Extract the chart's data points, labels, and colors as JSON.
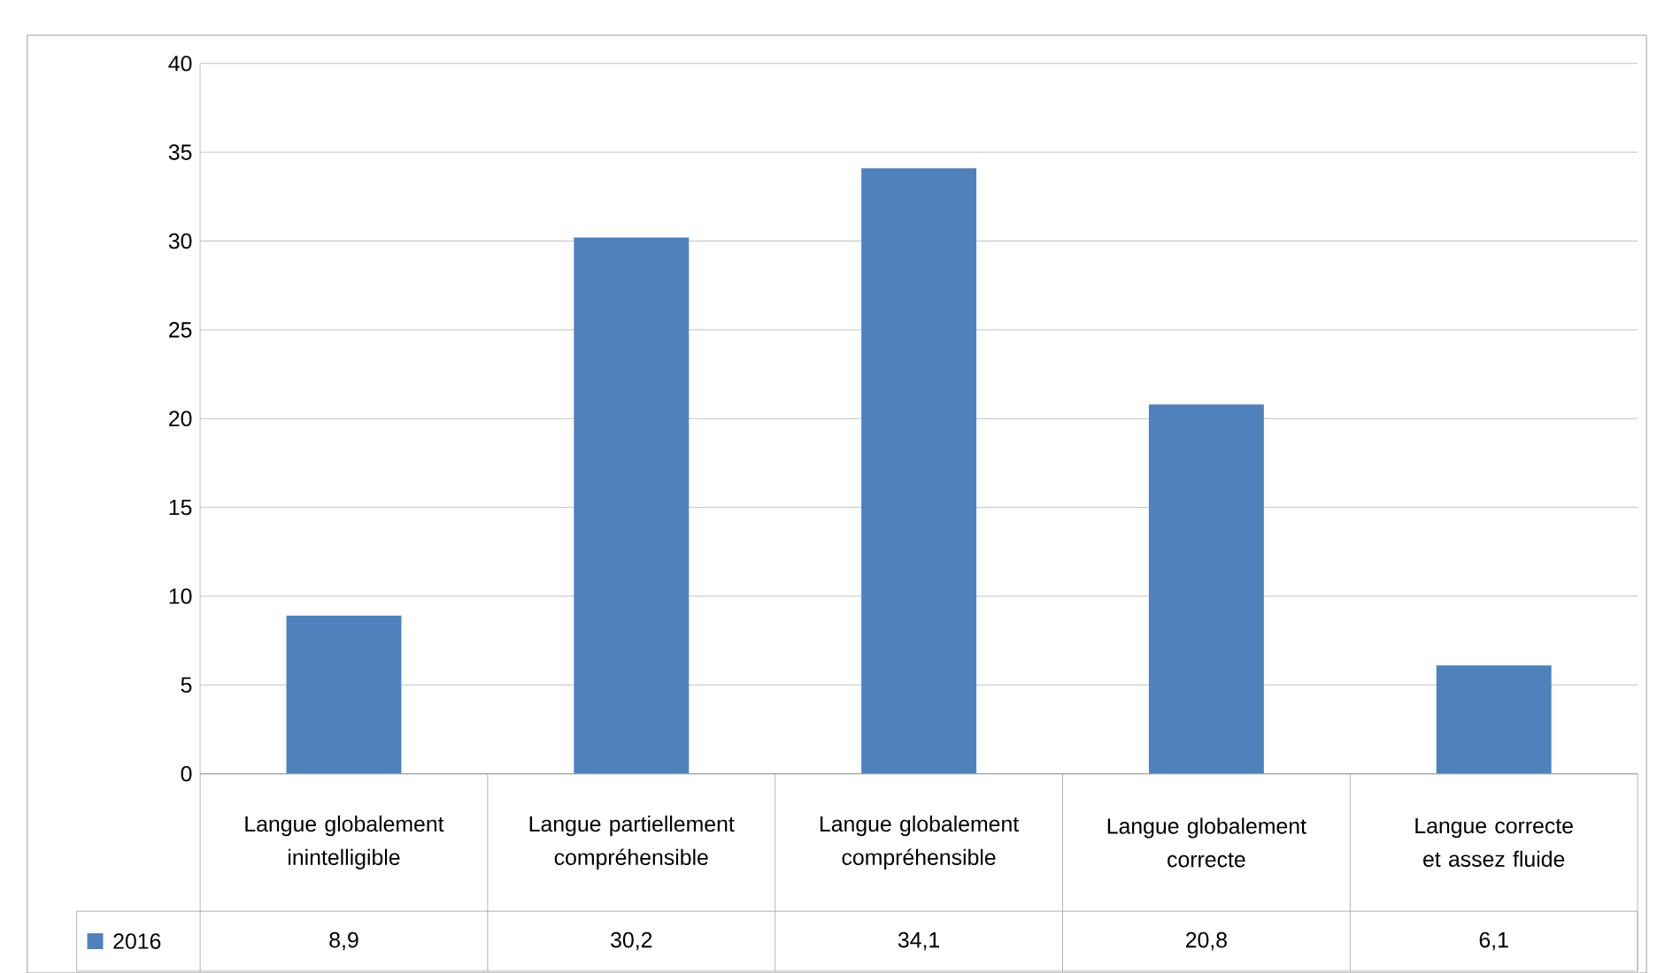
{
  "chart_data": {
    "type": "bar",
    "categories": [
      "Langue globalement inintelligible",
      "Langue partiellement compréhensible",
      "Langue globalement compréhensible",
      "Langue globalement correcte",
      "Langue correcte et assez fluide"
    ],
    "series": [
      {
        "name": "2016",
        "color": "#4f81bd",
        "values": [
          8.9,
          30.2,
          34.1,
          20.8,
          6.1
        ],
        "value_labels": [
          "8,9",
          "30,2",
          "34,1",
          "20,8",
          "6,1"
        ]
      }
    ],
    "ylim": [
      0,
      40
    ],
    "yticks": [
      0,
      5,
      10,
      15,
      20,
      25,
      30,
      35,
      40
    ],
    "grid": "y",
    "legend": "bottom"
  }
}
